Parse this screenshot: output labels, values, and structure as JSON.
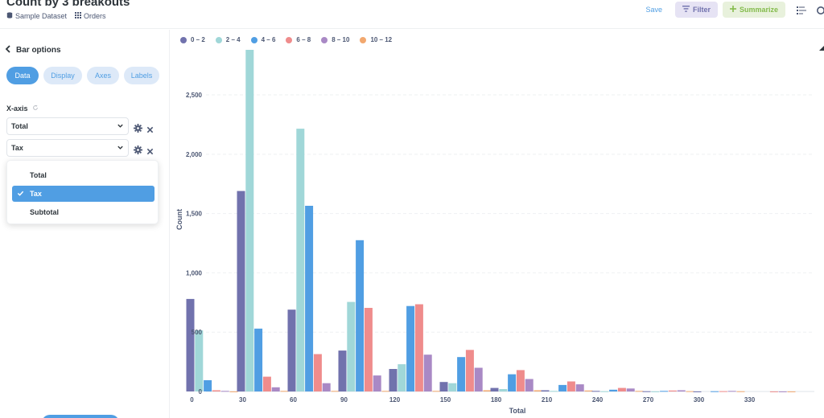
{
  "header": {
    "title": "Count by 3 breakouts",
    "breadcrumbs": [
      {
        "label": "Sample Dataset",
        "icon": "database-icon"
      },
      {
        "label": "Orders",
        "icon": "table-icon"
      }
    ],
    "save_label": "Save",
    "filter_label": "Filter",
    "summarize_label": "Summarize"
  },
  "sidebar": {
    "back_label": "Bar options",
    "tabs": [
      {
        "label": "Data",
        "active": true
      },
      {
        "label": "Display",
        "active": false
      },
      {
        "label": "Axes",
        "active": false
      },
      {
        "label": "Labels",
        "active": false
      }
    ],
    "xaxis_label": "X-axis",
    "fields": [
      {
        "value": "Total"
      },
      {
        "value": "Tax"
      }
    ],
    "dropdown": {
      "options": [
        {
          "label": "Total",
          "selected": false
        },
        {
          "label": "Tax",
          "selected": true
        },
        {
          "label": "Subtotal",
          "selected": false
        }
      ]
    }
  },
  "colors": {
    "accent": "#509ee3",
    "filter_bg": "#e6e3f4",
    "summarize_bg": "#e8f1dc"
  },
  "chart_data": {
    "type": "bar",
    "xlabel": "Total",
    "ylabel": "Count",
    "ylim": [
      0,
      2900
    ],
    "yticks": [
      0,
      500,
      1000,
      1500,
      2000,
      2500
    ],
    "ytick_labels": [
      "0",
      "500",
      "1,000",
      "1,500",
      "2,000",
      "2,500"
    ],
    "categories": [
      "0",
      "30",
      "60",
      "90",
      "120",
      "150",
      "180",
      "210",
      "240",
      "270",
      "300",
      "330"
    ],
    "legend_position": "top-left",
    "grid": true,
    "series": [
      {
        "name": "0 – 2",
        "color": "#7172ad",
        "values": [
          780,
          1690,
          690,
          345,
          190,
          80,
          30,
          10,
          5,
          2,
          1,
          0
        ]
      },
      {
        "name": "2 – 4",
        "color": "#a0d7d8",
        "values": [
          515,
          2880,
          2215,
          755,
          230,
          70,
          20,
          5,
          2,
          1,
          0,
          0
        ]
      },
      {
        "name": "4 – 6",
        "color": "#509ee3",
        "values": [
          95,
          530,
          1565,
          1275,
          720,
          290,
          145,
          55,
          15,
          5,
          2,
          0
        ]
      },
      {
        "name": "6 – 8",
        "color": "#ef8c8c",
        "values": [
          10,
          125,
          315,
          705,
          735,
          350,
          180,
          85,
          30,
          8,
          3,
          1
        ]
      },
      {
        "name": "8 – 10",
        "color": "#a989c5",
        "values": [
          5,
          35,
          70,
          135,
          310,
          200,
          105,
          60,
          25,
          10,
          5,
          1
        ]
      },
      {
        "name": "10 – 12",
        "color": "#f2a86f",
        "values": [
          1,
          5,
          5,
          5,
          5,
          10,
          10,
          8,
          5,
          3,
          2,
          1
        ]
      }
    ]
  }
}
